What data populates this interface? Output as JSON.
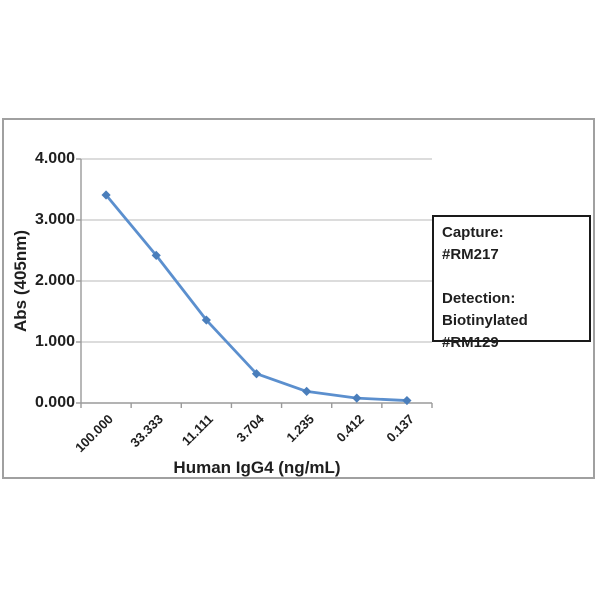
{
  "figure": {
    "background": "#ffffff"
  },
  "chart_data": {
    "type": "line",
    "title": "",
    "xlabel": "Human IgG4 (ng/mL)",
    "ylabel": "Abs (405nm)",
    "categories": [
      "100.000",
      "33.333",
      "11.111",
      "3.704",
      "1.235",
      "0.412",
      "0.137"
    ],
    "values": [
      3.41,
      2.42,
      1.36,
      0.48,
      0.19,
      0.08,
      0.04
    ],
    "ylim": [
      0,
      4
    ],
    "y_tick_labels": [
      "0.000",
      "1.000",
      "2.000",
      "3.000",
      "4.000"
    ],
    "grid": true,
    "legend": "none",
    "marker": "diamond",
    "x_tick_style": "between-categories"
  },
  "annotation": {
    "capture_label": "Capture:",
    "capture_value": "#RM217",
    "detection_label": "Detection:",
    "detection_value": "Biotinylated #RM129"
  },
  "colors": {
    "line": "#5b8fce",
    "marker": "#4a7ebb",
    "gridline": "#c8c8c8",
    "axis": "#9a9a9a",
    "frame_border": "#a0a0a0",
    "annotation_border": "#1a1a1a",
    "text": "#1f1f1f"
  }
}
